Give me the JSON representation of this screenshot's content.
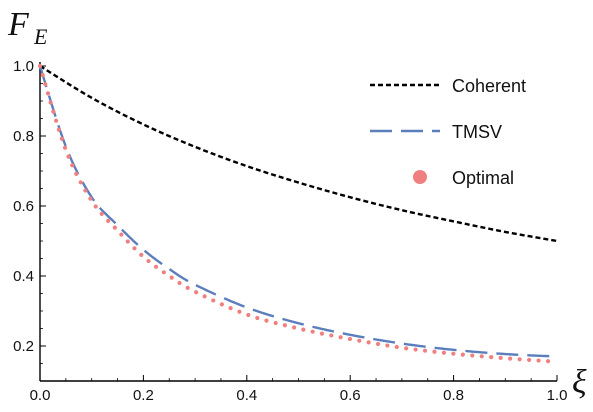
{
  "chart_data": {
    "type": "line",
    "xlabel": "ξ",
    "ylabel_main": "F",
    "ylabel_sub": "E",
    "xlim": [
      0.0,
      1.0
    ],
    "ylim": [
      0.1,
      1.0
    ],
    "x_ticks": [
      "0.0",
      "0.2",
      "0.4",
      "0.6",
      "0.8",
      "1.0"
    ],
    "y_ticks": [
      "0.2",
      "0.4",
      "0.6",
      "0.8",
      "1.0"
    ],
    "grid": false,
    "legend_position": "top-right",
    "series": [
      {
        "name": "Coherent",
        "style": "dashed-short",
        "color": "#000000",
        "x": [
          0.0,
          0.1,
          0.2,
          0.3,
          0.4,
          0.5,
          0.6,
          0.7,
          0.8,
          0.9,
          1.0
        ],
        "y": [
          1.0,
          0.909,
          0.833,
          0.769,
          0.714,
          0.667,
          0.625,
          0.588,
          0.556,
          0.526,
          0.5
        ]
      },
      {
        "name": "TMSV",
        "style": "dashed-long",
        "color": "#5b7fbd",
        "x": [
          0.0,
          0.05,
          0.1,
          0.15,
          0.2,
          0.25,
          0.3,
          0.4,
          0.5,
          0.6,
          0.7,
          0.8,
          0.9,
          1.0
        ],
        "y": [
          1.0,
          0.77,
          0.625,
          0.545,
          0.475,
          0.42,
          0.375,
          0.31,
          0.265,
          0.232,
          0.207,
          0.189,
          0.177,
          0.17
        ]
      },
      {
        "name": "Optimal",
        "style": "dotted",
        "color": "#f08080",
        "x": [
          0.0,
          0.05,
          0.1,
          0.15,
          0.2,
          0.25,
          0.3,
          0.4,
          0.5,
          0.6,
          0.7,
          0.8,
          0.9,
          1.0
        ],
        "y": [
          1.0,
          0.76,
          0.615,
          0.53,
          0.455,
          0.4,
          0.355,
          0.29,
          0.25,
          0.22,
          0.195,
          0.178,
          0.165,
          0.155
        ]
      }
    ]
  }
}
